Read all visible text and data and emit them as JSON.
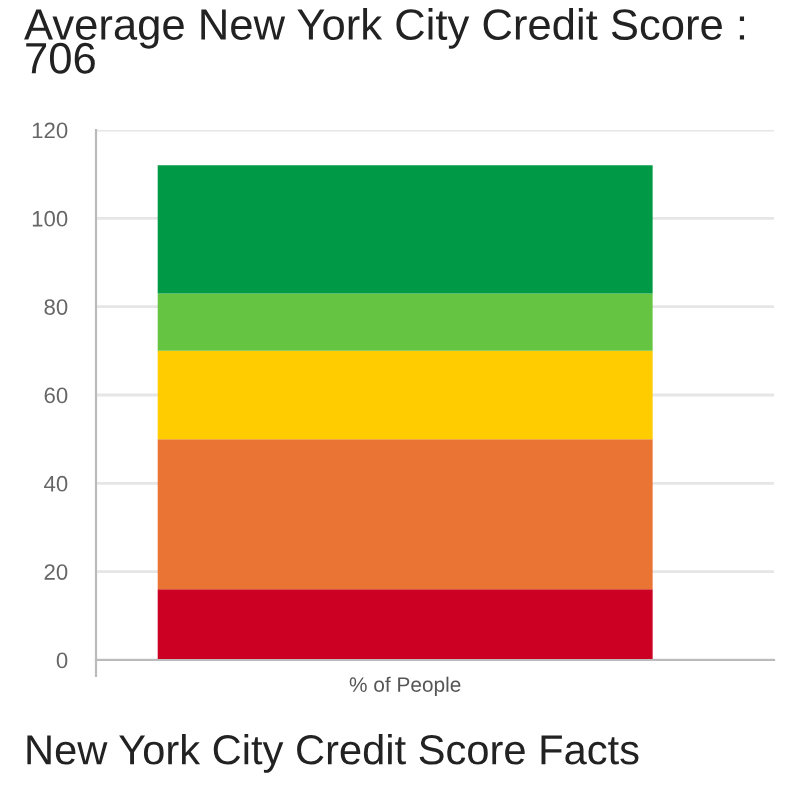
{
  "chart_data": {
    "type": "bar",
    "title": "Average New York City Credit Score : 706",
    "categories": [
      "% of People"
    ],
    "stacked": true,
    "series": [
      {
        "color": "#cc0022",
        "values": [
          16
        ]
      },
      {
        "color": "#ea7433",
        "values": [
          34
        ]
      },
      {
        "color": "#ffcc00",
        "values": [
          20
        ]
      },
      {
        "color": "#66c443",
        "values": [
          13
        ]
      },
      {
        "color": "#009a47",
        "values": [
          29
        ]
      }
    ],
    "ylim": [
      0,
      120
    ],
    "yticks": [
      0,
      20,
      40,
      60,
      80,
      100,
      120
    ],
    "grid": "y",
    "annotations": [
      "New York City Credit Score Facts"
    ]
  }
}
